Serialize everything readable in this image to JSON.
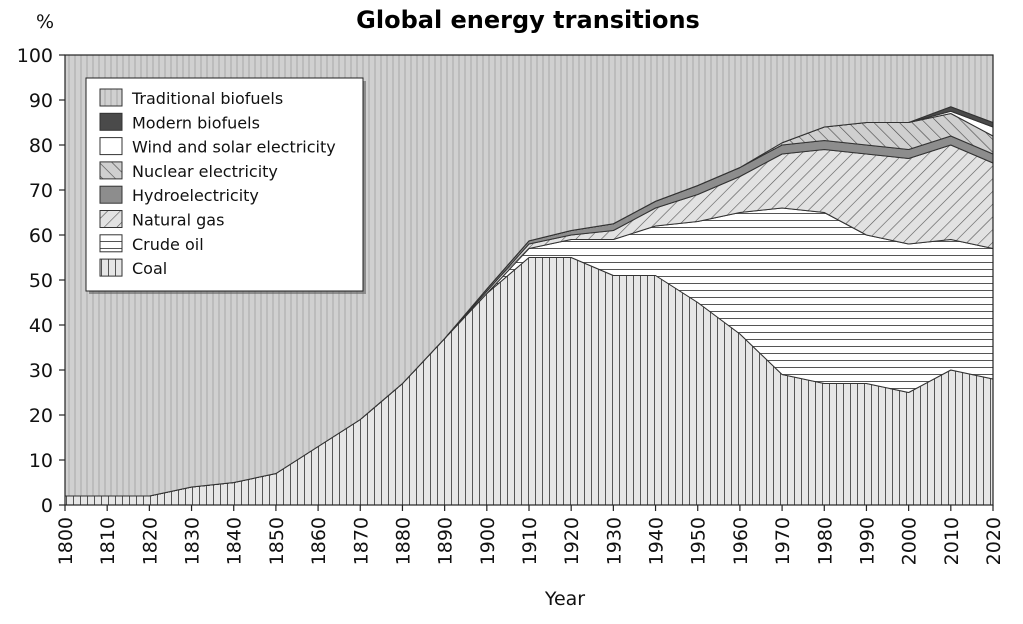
{
  "chart_data": {
    "type": "area",
    "title": "Global energy transitions",
    "xlabel": "Year",
    "ylabel": "%",
    "xlim": [
      1800,
      2020
    ],
    "ylim": [
      0,
      100
    ],
    "x_ticks": [
      1800,
      1810,
      1820,
      1830,
      1840,
      1850,
      1860,
      1870,
      1880,
      1890,
      1900,
      1910,
      1920,
      1930,
      1940,
      1950,
      1960,
      1970,
      1980,
      1990,
      2000,
      2010,
      2020
    ],
    "y_ticks": [
      0,
      10,
      20,
      30,
      40,
      50,
      60,
      70,
      80,
      90,
      100
    ],
    "stacked": true,
    "legend_placement": "top-left",
    "grid": false,
    "x": [
      1800,
      1810,
      1820,
      1830,
      1840,
      1850,
      1860,
      1870,
      1880,
      1890,
      1900,
      1910,
      1920,
      1930,
      1940,
      1950,
      1960,
      1970,
      1980,
      1990,
      2000,
      2010,
      2020
    ],
    "series": [
      {
        "name": "Coal",
        "pattern": "vertical-lines",
        "values": [
          2,
          2,
          2,
          4,
          5,
          7,
          13,
          19,
          27,
          37,
          47,
          55,
          55,
          51,
          51,
          45,
          38,
          29,
          27,
          27,
          25,
          30,
          28
        ]
      },
      {
        "name": "Crude oil",
        "pattern": "horizontal-lines",
        "values": [
          0,
          0,
          0,
          0,
          0,
          0,
          0,
          0,
          0,
          0,
          0,
          2,
          4,
          8,
          11,
          18,
          27,
          37,
          38,
          33,
          33,
          29,
          29
        ]
      },
      {
        "name": "Natural gas",
        "pattern": "diagonal-hatch",
        "values": [
          0,
          0,
          0,
          0,
          0,
          0,
          0,
          0,
          0,
          0,
          0.5,
          1,
          1,
          2,
          4,
          6,
          8,
          12,
          14,
          18,
          19,
          21,
          19
        ]
      },
      {
        "name": "Hydroelectricity",
        "pattern": "solid-gray",
        "values": [
          0,
          0,
          0,
          0,
          0,
          0,
          0,
          0,
          0,
          0,
          0.5,
          0.7,
          1,
          1.5,
          1.5,
          2,
          2,
          2,
          2,
          2,
          2,
          2,
          2
        ]
      },
      {
        "name": "Nuclear electricity",
        "pattern": "back-diagonal-hatch",
        "values": [
          0,
          0,
          0,
          0,
          0,
          0,
          0,
          0,
          0,
          0,
          0,
          0,
          0,
          0,
          0,
          0,
          0,
          0.5,
          3,
          5,
          6,
          5,
          4
        ]
      },
      {
        "name": "Wind and solar electricity",
        "pattern": "white",
        "values": [
          0,
          0,
          0,
          0,
          0,
          0,
          0,
          0,
          0,
          0,
          0,
          0,
          0,
          0,
          0,
          0,
          0,
          0,
          0,
          0,
          0,
          0.5,
          2
        ]
      },
      {
        "name": "Modern biofuels",
        "pattern": "dark-gray",
        "values": [
          0,
          0,
          0,
          0,
          0,
          0,
          0,
          0,
          0,
          0,
          0,
          0,
          0,
          0,
          0,
          0,
          0,
          0,
          0,
          0,
          0,
          1,
          1
        ]
      },
      {
        "name": "Traditional biofuels",
        "pattern": "light-vertical-lines",
        "values": [
          98,
          98,
          98,
          96,
          95,
          93,
          87,
          81,
          73,
          63,
          52,
          41.3,
          39,
          37.5,
          32.5,
          29,
          25,
          19.5,
          16,
          15,
          15,
          11.5,
          15
        ]
      }
    ],
    "legend_order": [
      "Traditional biofuels",
      "Modern biofuels",
      "Wind and solar electricity",
      "Nuclear electricity",
      "Hydroelectricity",
      "Natural gas",
      "Crude oil",
      "Coal"
    ]
  }
}
